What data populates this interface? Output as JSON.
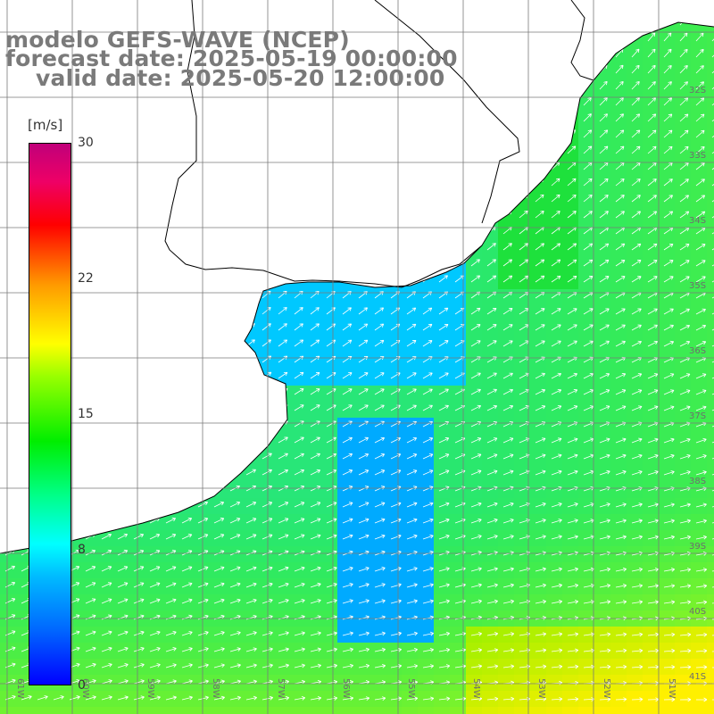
{
  "title": {
    "line1": "modelo GEFS-WAVE (NCEP)",
    "line2": "forecast date: 2025-05-19 00:00:00",
    "line3": "valid date: 2025-05-20 12:00:00"
  },
  "colorbar": {
    "units": "[m/s]",
    "ticks": [
      "30",
      "22",
      "15",
      "8",
      "0"
    ],
    "colors": [
      "#0000ff",
      "#00bbff",
      "#00ffff",
      "#00ee00",
      "#ffff00",
      "#ff0000",
      "#c0007a"
    ]
  },
  "lat_labels": [
    "32S",
    "33S",
    "34S",
    "35S",
    "36S",
    "37S",
    "38S",
    "39S",
    "40S",
    "41S"
  ],
  "lon_labels": [
    "61W",
    "60W",
    "59W",
    "58W",
    "57W",
    "56W",
    "55W",
    "54W",
    "53W",
    "52W",
    "51W"
  ],
  "colors": {
    "land": "#ffffff",
    "coastline": "#000000",
    "grid": "#808080",
    "arrow": "#ffffff",
    "title": "#7a7a7a"
  }
}
